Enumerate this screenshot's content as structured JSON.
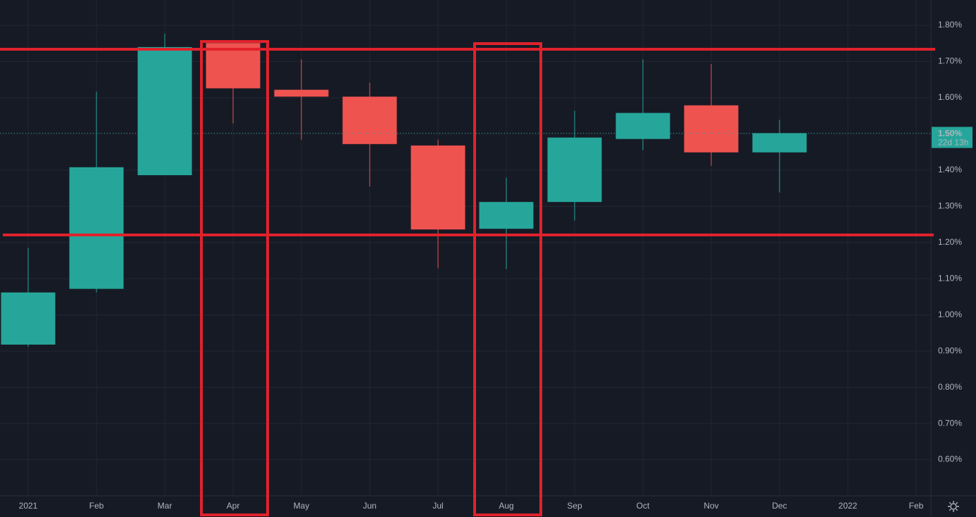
{
  "chart_data": {
    "type": "candlestick",
    "categories": [
      "2021",
      "Feb",
      "Mar",
      "Apr",
      "May",
      "Jun",
      "Jul",
      "Aug",
      "Sep",
      "Oct",
      "Nov",
      "Dec",
      "2022",
      "Feb"
    ],
    "open": [
      0.918,
      1.072,
      1.386,
      1.751,
      1.622,
      1.603,
      1.468,
      1.238,
      1.312,
      1.486,
      1.579,
      1.449,
      null,
      null
    ],
    "high": [
      1.185,
      1.617,
      1.777,
      1.755,
      1.706,
      1.642,
      1.484,
      1.379,
      1.564,
      1.706,
      1.693,
      1.539,
      null,
      null
    ],
    "low": [
      0.912,
      1.062,
      1.386,
      1.529,
      1.484,
      1.355,
      1.129,
      1.127,
      1.261,
      1.455,
      1.412,
      1.338,
      null,
      null
    ],
    "close": [
      1.062,
      1.408,
      1.74,
      1.626,
      1.603,
      1.472,
      1.236,
      1.312,
      1.49,
      1.558,
      1.449,
      1.502,
      null,
      null
    ],
    "up_color": "#26a69a",
    "down_color": "#ef5350",
    "ylim": [
      0.5,
      1.87
    ],
    "yticks": [
      {
        "value": 0.6,
        "label": "0.60%"
      },
      {
        "value": 0.7,
        "label": "0.70%"
      },
      {
        "value": 0.8,
        "label": "0.80%"
      },
      {
        "value": 0.9,
        "label": "0.90%"
      },
      {
        "value": 1.0,
        "label": "1.00%"
      },
      {
        "value": 1.1,
        "label": "1.10%"
      },
      {
        "value": 1.2,
        "label": "1.20%"
      },
      {
        "value": 1.3,
        "label": "1.30%"
      },
      {
        "value": 1.4,
        "label": "1.40%"
      },
      {
        "value": 1.5,
        "label": "1.50%"
      },
      {
        "value": 1.6,
        "label": "1.60%"
      },
      {
        "value": 1.7,
        "label": "1.70%"
      },
      {
        "value": 1.8,
        "label": "1.80%"
      }
    ],
    "last_price_label": "1.50%",
    "countdown": "22d 13h",
    "grid": true
  }
}
